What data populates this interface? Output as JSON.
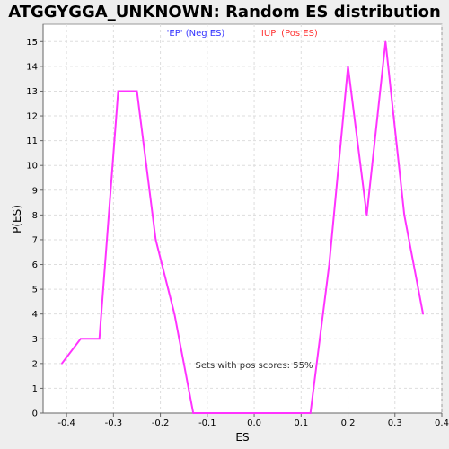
{
  "chart_data": {
    "type": "line",
    "title": "ATGGYGGA_UNKNOWN: Random ES distribution",
    "xlabel": "ES",
    "ylabel": "P(ES)",
    "xlim": [
      -0.45,
      0.4
    ],
    "ylim": [
      0,
      15.7
    ],
    "x_ticks": [
      -0.4,
      -0.3,
      -0.2,
      -0.1,
      0.0,
      0.1,
      0.2,
      0.3,
      0.4
    ],
    "x_tick_labels": [
      "-0.4",
      "-0.3",
      "-0.2",
      "-0.1",
      "0.0",
      "0.1",
      "0.2",
      "0.3",
      "0.4"
    ],
    "y_ticks": [
      0,
      1,
      2,
      3,
      4,
      5,
      6,
      7,
      8,
      9,
      10,
      11,
      12,
      13,
      14,
      15
    ],
    "y_tick_labels": [
      "0",
      "1",
      "2",
      "3",
      "4",
      "5",
      "6",
      "7",
      "8",
      "9",
      "10",
      "11",
      "12",
      "13",
      "14",
      "15"
    ],
    "grid": true,
    "legend": [
      {
        "label": "'EP' (Neg ES)",
        "color": "#3333ff"
      },
      {
        "label": "'IUP' (Pos ES)",
        "color": "#ff3333"
      }
    ],
    "annotation": "Sets with pos scores: 55%",
    "series": [
      {
        "color": "#ff33ff",
        "x": [
          -0.41,
          -0.37,
          -0.33,
          -0.29,
          -0.25,
          -0.21,
          -0.17,
          -0.13,
          -0.09,
          -0.05,
          -0.01,
          0.03,
          0.07,
          0.12,
          0.16,
          0.2,
          0.24,
          0.28,
          0.32,
          0.36
        ],
        "y": [
          2,
          3,
          3,
          13,
          13,
          7,
          4,
          0,
          0,
          0,
          0,
          0,
          0,
          0,
          6,
          14,
          8,
          15,
          8,
          4
        ]
      }
    ]
  }
}
